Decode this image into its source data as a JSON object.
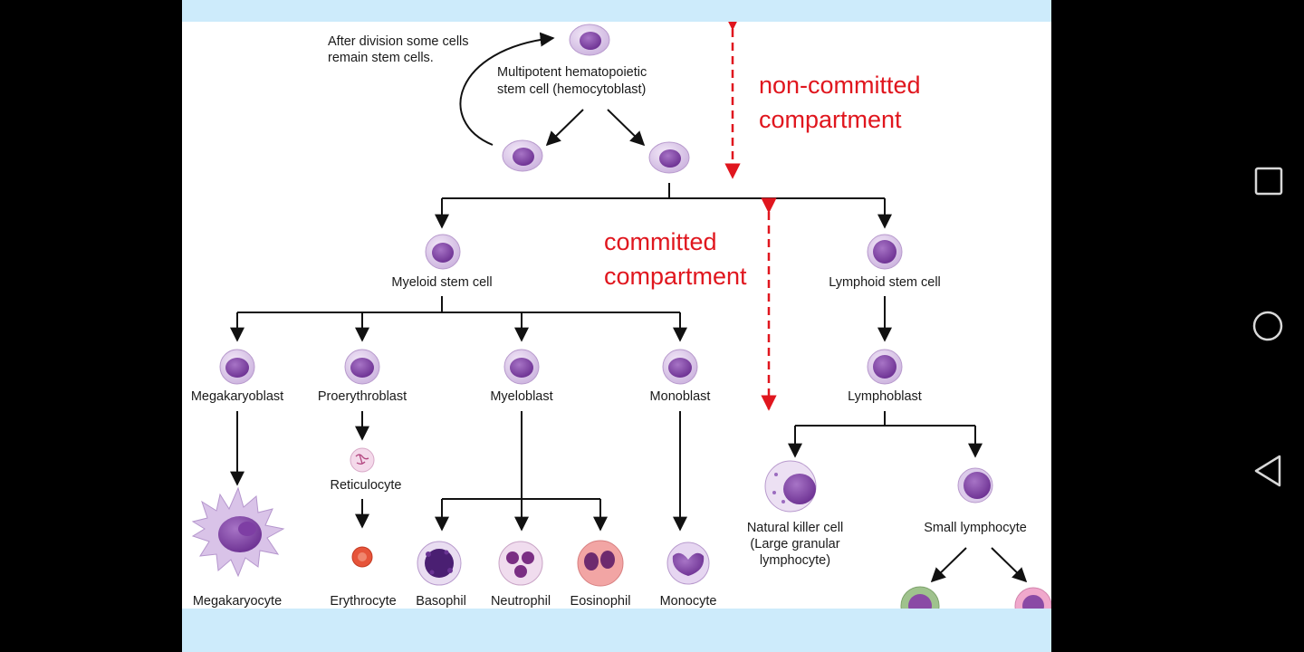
{
  "diagram": {
    "note": [
      "After division some cells",
      "remain stem cells."
    ],
    "hsc_label": [
      "Multipotent hematopoietic",
      "stem cell (hemocytoblast)"
    ],
    "noncommitted_label": [
      "non-committed",
      "compartment"
    ],
    "committed_label": [
      "committed",
      "compartment"
    ],
    "myeloid_stem": "Myeloid stem cell",
    "lymphoid_stem": "Lymphoid stem cell",
    "megakaryoblast": "Megakaryoblast",
    "proerythroblast": "Proerythroblast",
    "myeloblast": "Myeloblast",
    "monoblast": "Monoblast",
    "lymphoblast": "Lymphoblast",
    "reticulocyte": "Reticulocyte",
    "megakaryocyte": "Megakaryocyte",
    "erythrocyte": "Erythrocyte",
    "basophil": "Basophil",
    "neutrophil": "Neutrophil",
    "eosinophil": "Eosinophil",
    "monocyte": "Monocyte",
    "nk_cell": [
      "Natural killer cell",
      "(Large granular",
      "lymphocyte)"
    ],
    "small_lymphocyte": "Small lymphocyte"
  },
  "colors": {
    "accent_red": "#e0161e",
    "cell_purple": "#8c4fb0",
    "viewer_bg": "#cdebfb"
  },
  "navigation": {
    "recents": "square-icon",
    "home": "circle-icon",
    "back": "triangle-back-icon"
  }
}
